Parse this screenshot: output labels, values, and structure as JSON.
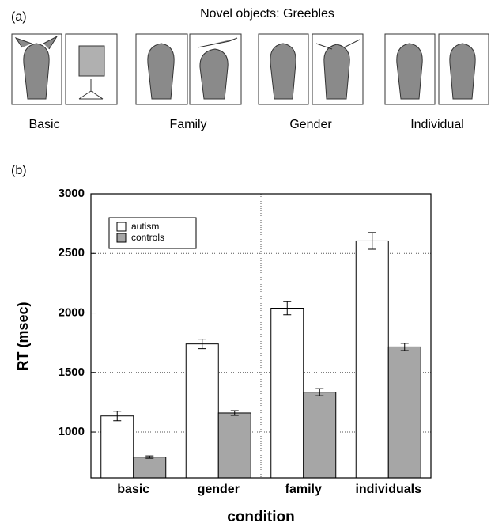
{
  "panel_a": {
    "label": "(a)",
    "title": "Novel objects: Greebles",
    "captions": [
      "Basic",
      "Family",
      "Gender",
      "Individual"
    ]
  },
  "panel_b": {
    "label": "(b)"
  },
  "chart_data": {
    "type": "bar",
    "categories": [
      "basic",
      "gender",
      "family",
      "individuals"
    ],
    "series": [
      {
        "name": "autism",
        "color": "#ffffff",
        "values": [
          1135,
          1740,
          2040,
          2605
        ],
        "errors": [
          40,
          40,
          55,
          70
        ]
      },
      {
        "name": "controls",
        "color": "#a6a6a6",
        "values": [
          790,
          1160,
          1335,
          1715
        ],
        "errors": [
          10,
          20,
          30,
          30
        ]
      }
    ],
    "y_label": "RT (msec)",
    "x_label": "condition",
    "ylim": [
      615,
      3000
    ],
    "yticks": [
      1000,
      1500,
      2000,
      2500,
      3000
    ],
    "grid": true,
    "legend": "upper left"
  }
}
